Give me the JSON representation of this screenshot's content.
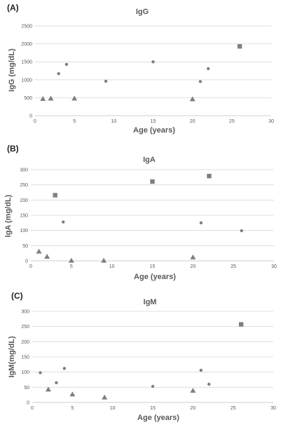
{
  "colors": {
    "marker": "#7f7f7f",
    "grid": "#d9d9d9",
    "text": "#595959"
  },
  "chart_data": [
    {
      "type": "scatter",
      "panel_label": "(A)",
      "title": "IgG",
      "xlabel": "Age (years)",
      "ylabel": "IgG (mg/dL)",
      "xlim": [
        0,
        30
      ],
      "ylim": [
        0,
        2500
      ],
      "xticks": [
        0,
        5,
        10,
        15,
        20,
        25,
        30
      ],
      "yticks": [
        0,
        500,
        1000,
        1500,
        2000,
        2500
      ],
      "grid": "horizontal",
      "series": [
        {
          "marker": "circle",
          "points": [
            [
              3,
              1170
            ],
            [
              4,
              1430
            ],
            [
              9,
              960
            ],
            [
              15,
              1500
            ],
            [
              21,
              950
            ],
            [
              22,
              1310
            ]
          ]
        },
        {
          "marker": "triangle",
          "points": [
            [
              1,
              480
            ],
            [
              2,
              490
            ],
            [
              5,
              490
            ],
            [
              20,
              470
            ]
          ]
        },
        {
          "marker": "square",
          "points": [
            [
              26,
              1930
            ]
          ]
        }
      ]
    },
    {
      "type": "scatter",
      "panel_label": "(B)",
      "title": "IgA",
      "xlabel": "Age (years)",
      "ylabel": "IgA (mg/dL)",
      "xlim": [
        0,
        30
      ],
      "ylim": [
        0,
        300
      ],
      "xticks": [
        0,
        5,
        10,
        15,
        20,
        25,
        30
      ],
      "yticks": [
        0,
        50,
        100,
        150,
        200,
        250,
        300
      ],
      "grid": "horizontal",
      "series": [
        {
          "marker": "circle",
          "points": [
            [
              4,
              128
            ],
            [
              21,
              125
            ],
            [
              26,
              99
            ]
          ]
        },
        {
          "marker": "triangle",
          "points": [
            [
              1,
              32
            ],
            [
              2,
              15
            ],
            [
              5,
              2
            ],
            [
              9,
              2
            ],
            [
              20,
              13
            ]
          ]
        },
        {
          "marker": "square",
          "points": [
            [
              3,
              216
            ],
            [
              15,
              261
            ],
            [
              22,
              279
            ]
          ]
        }
      ]
    },
    {
      "type": "scatter",
      "panel_label": "(C)",
      "title": "IgM",
      "xlabel": "Age (years)",
      "ylabel": "IgM(mg/dL)",
      "xlim": [
        0,
        30
      ],
      "ylim": [
        0,
        300
      ],
      "xticks": [
        0,
        5,
        10,
        15,
        20,
        25,
        30
      ],
      "yticks": [
        0,
        50,
        100,
        150,
        200,
        250,
        300
      ],
      "grid": "horizontal",
      "series": [
        {
          "marker": "circle",
          "points": [
            [
              1,
              98
            ],
            [
              3,
              65
            ],
            [
              4,
              112
            ],
            [
              15,
              53
            ],
            [
              21,
              106
            ],
            [
              22,
              60
            ]
          ]
        },
        {
          "marker": "triangle",
          "points": [
            [
              2,
              44
            ],
            [
              5,
              28
            ],
            [
              9,
              18
            ],
            [
              20,
              40
            ]
          ]
        },
        {
          "marker": "square",
          "points": [
            [
              26,
              257
            ]
          ]
        }
      ]
    }
  ]
}
